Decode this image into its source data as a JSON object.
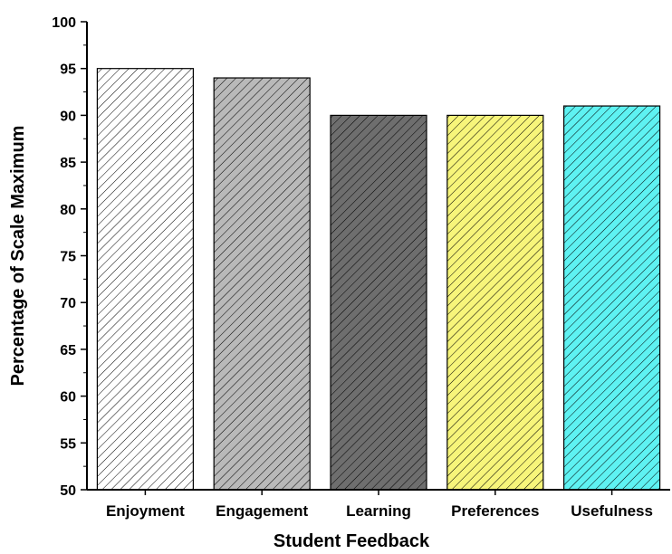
{
  "chart_data": {
    "type": "bar",
    "title": "",
    "xlabel": "Student Feedback",
    "ylabel": "Percentage of Scale Maximum",
    "categories": [
      "Enjoyment",
      "Engagement",
      "Learning",
      "Preferences",
      "Usefulness"
    ],
    "values": [
      95,
      94,
      90,
      90,
      91
    ],
    "bar_colors": [
      "#ffffff",
      "#b9b9b9",
      "#6e6e6e",
      "#f7f57a",
      "#5ef2f2"
    ],
    "bar_pattern": "diagonal-hatch",
    "ylim": [
      50,
      100
    ],
    "yticks": [
      50,
      55,
      60,
      65,
      70,
      75,
      80,
      85,
      90,
      95,
      100
    ],
    "grid": false,
    "legend": "none"
  }
}
